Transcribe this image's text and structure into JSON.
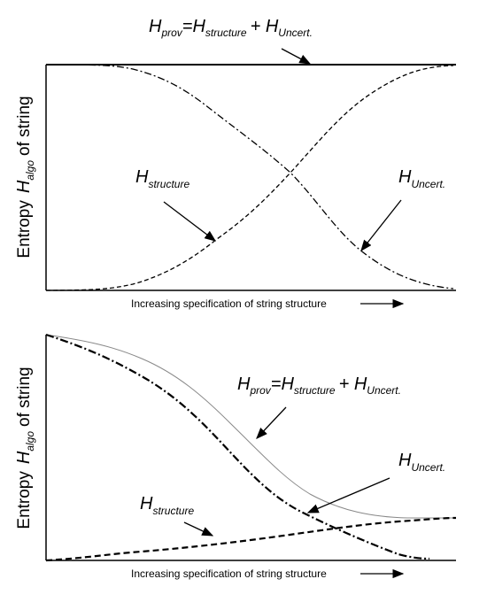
{
  "panels": [
    {
      "equation": [
        {
          "base": "H",
          "sub": "prov"
        },
        {
          "base": "=H",
          "sub": "structure"
        },
        {
          "base": "+ H",
          "sub": "Uncert."
        }
      ],
      "y_label": {
        "pre": "Entropy",
        "base": "H",
        "sub": "algo",
        "post": "of string"
      },
      "x_label": "Increasing specification of string structure",
      "structure_label": {
        "base": "H",
        "sub": "structure"
      },
      "uncert_label": {
        "base": "H",
        "sub": "Uncert."
      }
    },
    {
      "equation": [
        {
          "base": "H",
          "sub": "prov"
        },
        {
          "base": "=H",
          "sub": "structure"
        },
        {
          "base": "+ H",
          "sub": "Uncert."
        }
      ],
      "y_label": {
        "pre": "Entropy",
        "base": "H",
        "sub": "algo",
        "post": "of string"
      },
      "x_label": "Increasing specification of string structure",
      "structure_label": {
        "base": "H",
        "sub": "structure"
      },
      "uncert_label": {
        "base": "H",
        "sub": "Uncert."
      }
    }
  ]
}
